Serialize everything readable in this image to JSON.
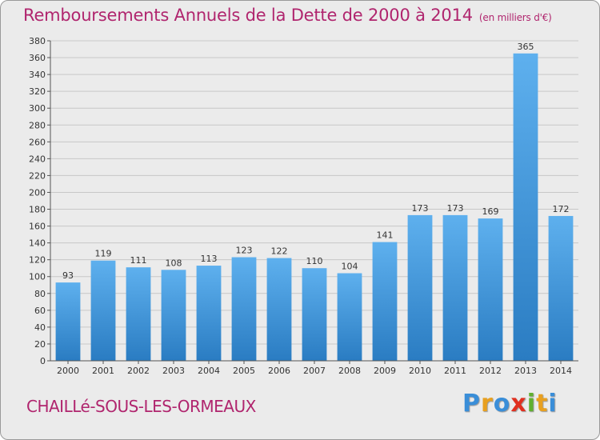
{
  "title": "Remboursements Annuels de la Dette de 2000 à 2014",
  "subtitle": "(en milliers d'€)",
  "commune": "CHAILLé-SOUS-LES-ORMEAUX",
  "logo": {
    "letters": [
      "P",
      "r",
      "o",
      "x",
      "i",
      "t",
      "i"
    ],
    "colors": [
      "#3a8ed8",
      "#e8a020",
      "#3a8ed8",
      "#e03020",
      "#60b030",
      "#e8a020",
      "#3a8ed8"
    ]
  },
  "colors": {
    "bar_top": "#5eb0ee",
    "bar_bottom": "#2a7cc2",
    "grid": "#c8c8c8",
    "axis": "#555555",
    "text": "#333333",
    "accent": "#b0256e"
  },
  "chart_data": {
    "type": "bar",
    "title": "Remboursements Annuels de la Dette de 2000 à 2014",
    "xlabel": "",
    "ylabel": "",
    "categories": [
      "2000",
      "2001",
      "2002",
      "2003",
      "2004",
      "2005",
      "2006",
      "2007",
      "2008",
      "2009",
      "2010",
      "2011",
      "2012",
      "2013",
      "2014"
    ],
    "values": [
      93,
      119,
      111,
      108,
      113,
      123,
      122,
      110,
      104,
      141,
      173,
      173,
      169,
      365,
      172
    ],
    "ylim": [
      0,
      380
    ],
    "yticks": [
      0,
      20,
      40,
      60,
      80,
      100,
      120,
      140,
      160,
      180,
      200,
      220,
      240,
      260,
      280,
      300,
      320,
      340,
      360,
      380
    ],
    "grid": true
  }
}
